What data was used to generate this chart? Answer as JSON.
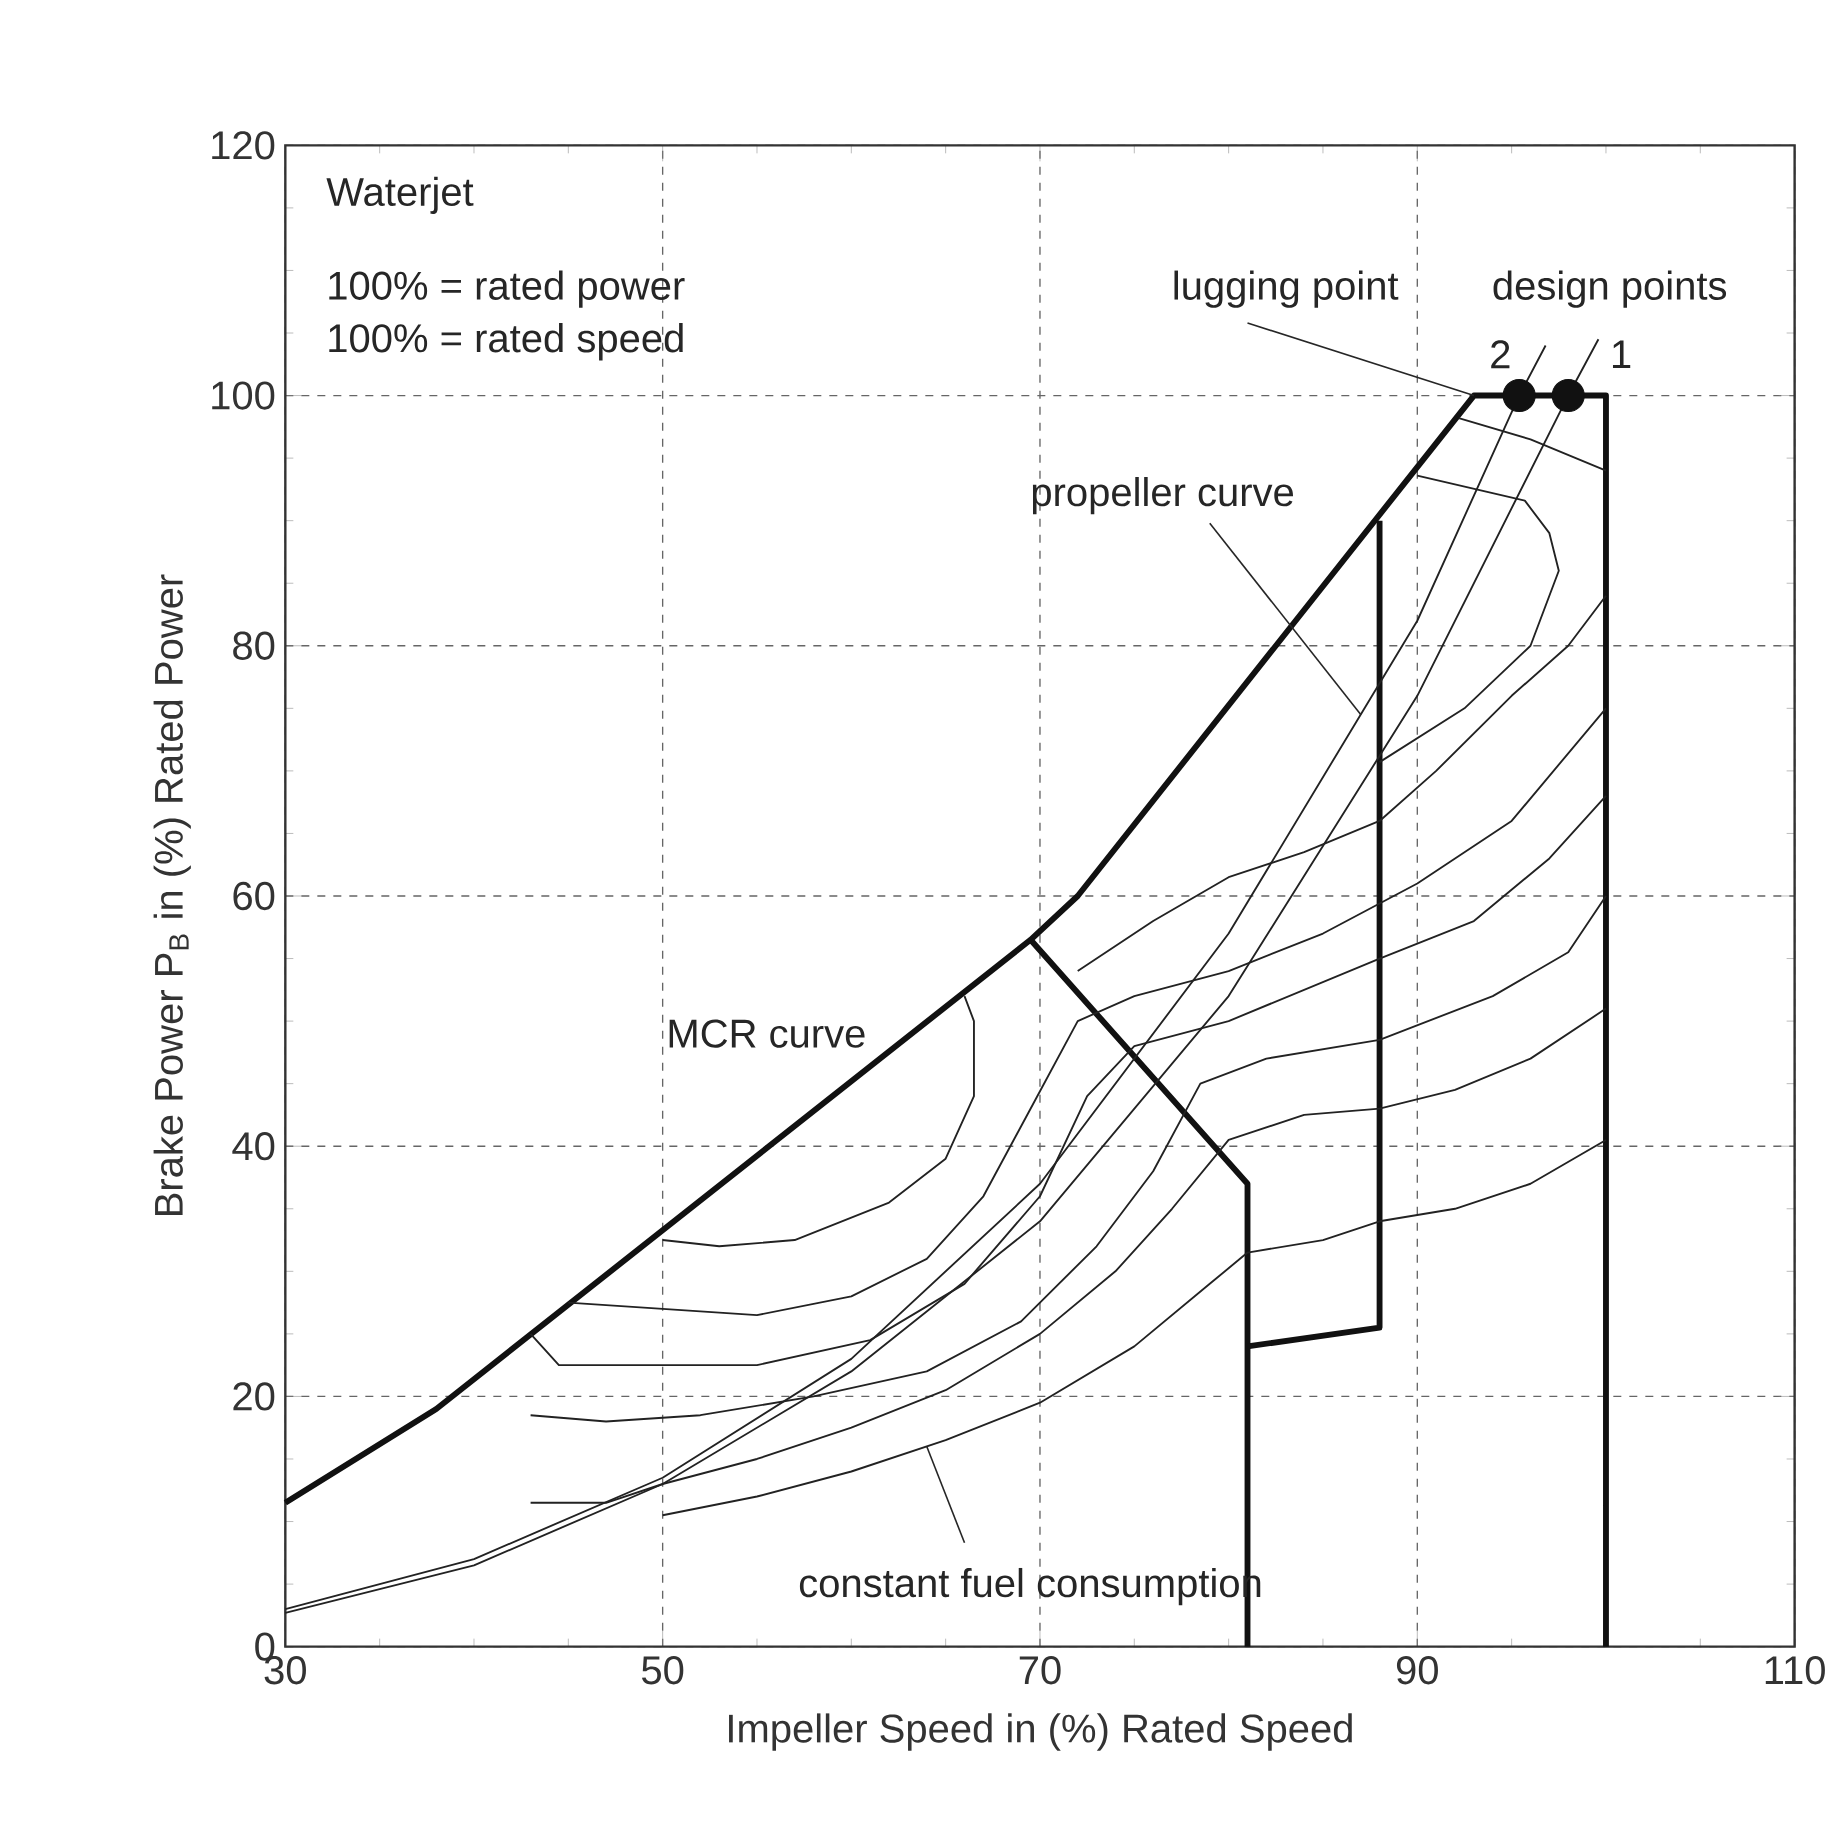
{
  "chart_data": {
    "type": "line",
    "xlabel": "Impeller Speed in (%) Rated Speed",
    "ylabel": "Brake Power P$_{B}$ in (%) Rated Power",
    "xlim": [
      30,
      110
    ],
    "ylim": [
      0,
      120
    ],
    "xticks": [
      30,
      50,
      70,
      90,
      110
    ],
    "yticks": [
      0,
      20,
      40,
      60,
      80,
      100,
      120
    ],
    "grid": true,
    "series": [
      {
        "color": "#111111",
        "x": [
          30,
          38,
          69.5,
          72,
          93,
          100,
          100
        ],
        "values": [
          11.5,
          19,
          56.5,
          60,
          100,
          100,
          0
        ]
      },
      {
        "color": "#111111",
        "x": [
          69.5,
          81,
          81
        ],
        "values": [
          56.5,
          37,
          0
        ]
      },
      {
        "color": "#111111",
        "x": [
          81,
          88,
          88
        ],
        "values": [
          24,
          25.5,
          90
        ]
      },
      {
        "color": "#222222",
        "x": [
          30,
          40,
          50,
          60,
          70,
          80,
          90,
          95.4,
          96.8
        ],
        "values": [
          3,
          7,
          13.5,
          23,
          37,
          57,
          82,
          100,
          104
        ]
      },
      {
        "color": "#222222",
        "x": [
          30,
          40,
          50,
          60,
          70,
          80,
          90,
          98,
          99.6
        ],
        "values": [
          2.7,
          6.5,
          13,
          22,
          34,
          52,
          76,
          100,
          104.5
        ]
      },
      {
        "color": "#222222",
        "x": [
          50,
          55,
          60,
          65,
          70,
          75,
          79,
          81,
          85,
          88,
          92,
          96,
          100
        ],
        "values": [
          10.5,
          12,
          14,
          16.5,
          19.5,
          24,
          29,
          31.5,
          32.5,
          34,
          35,
          37,
          40.5
        ]
      },
      {
        "color": "#222222",
        "x": [
          43,
          47,
          50,
          55,
          60,
          65,
          70,
          74,
          77,
          80,
          84,
          88,
          92,
          96,
          100
        ],
        "values": [
          11.5,
          11.5,
          13,
          15,
          17.5,
          20.5,
          25,
          30,
          35,
          40.5,
          42.5,
          43,
          44.5,
          47,
          51
        ]
      },
      {
        "color": "#222222",
        "x": [
          43,
          47,
          52,
          58,
          64,
          69,
          73,
          76,
          78.5,
          82,
          88,
          94,
          98,
          100
        ],
        "values": [
          18.5,
          18,
          18.5,
          20,
          22,
          26,
          32,
          38,
          45,
          47,
          48.5,
          52,
          55.5,
          60
        ]
      },
      {
        "color": "#222222",
        "x": [
          43,
          44.5,
          48,
          55,
          61,
          66,
          70,
          72.5,
          75,
          80,
          88,
          93,
          97,
          100
        ],
        "values": [
          25,
          22.5,
          22.5,
          22.5,
          24.5,
          29,
          36,
          44,
          48,
          50,
          55,
          58,
          63,
          68
        ]
      },
      {
        "color": "#222222",
        "x": [
          45,
          50,
          55,
          60,
          64,
          67,
          69.5,
          72,
          75,
          80,
          85,
          90,
          95,
          100
        ],
        "values": [
          27.5,
          27,
          26.5,
          28,
          31,
          36,
          43,
          50,
          52,
          54,
          57,
          61,
          66,
          75
        ]
      },
      {
        "color": "#222222",
        "x": [
          50,
          53,
          57,
          62,
          65,
          66.5,
          66.5,
          66
        ],
        "values": [
          32.5,
          32,
          32.5,
          35.5,
          39,
          44,
          50,
          52
        ]
      },
      {
        "color": "#222222",
        "x": [
          72,
          76,
          80,
          84,
          88,
          91,
          95,
          98,
          100
        ],
        "values": [
          54,
          58,
          61.5,
          63.5,
          66,
          70,
          76,
          80,
          84
        ]
      },
      {
        "color": "#222222",
        "x": [
          88,
          92.5,
          96,
          97.5,
          97,
          95.7,
          90
        ],
        "values": [
          70.7,
          75,
          80,
          86,
          89,
          91.6,
          93.6
        ]
      },
      {
        "color": "#222222",
        "x": [
          92.2,
          96,
          100
        ],
        "values": [
          98.2,
          96.5,
          94
        ]
      },
      {
        "type": "scatter",
        "marker": "circle",
        "color": "#111111",
        "x": [
          95.4,
          98
        ],
        "values": [
          100,
          100
        ]
      }
    ],
    "annotations": [
      "Waterjet",
      "100% = rated power",
      "100% = rated speed",
      {
        "text": "lugging point",
        "x": 93,
        "y": 100
      },
      "design points",
      {
        "text": "2",
        "x": 95.4,
        "y": 100
      },
      {
        "text": "1",
        "x": 98,
        "y": 100
      },
      {
        "text": "propeller curve",
        "x": 87,
        "y": 74.5
      },
      "MCR curve",
      {
        "text": "constant fuel consumption",
        "x": 64,
        "y": 16
      }
    ]
  }
}
